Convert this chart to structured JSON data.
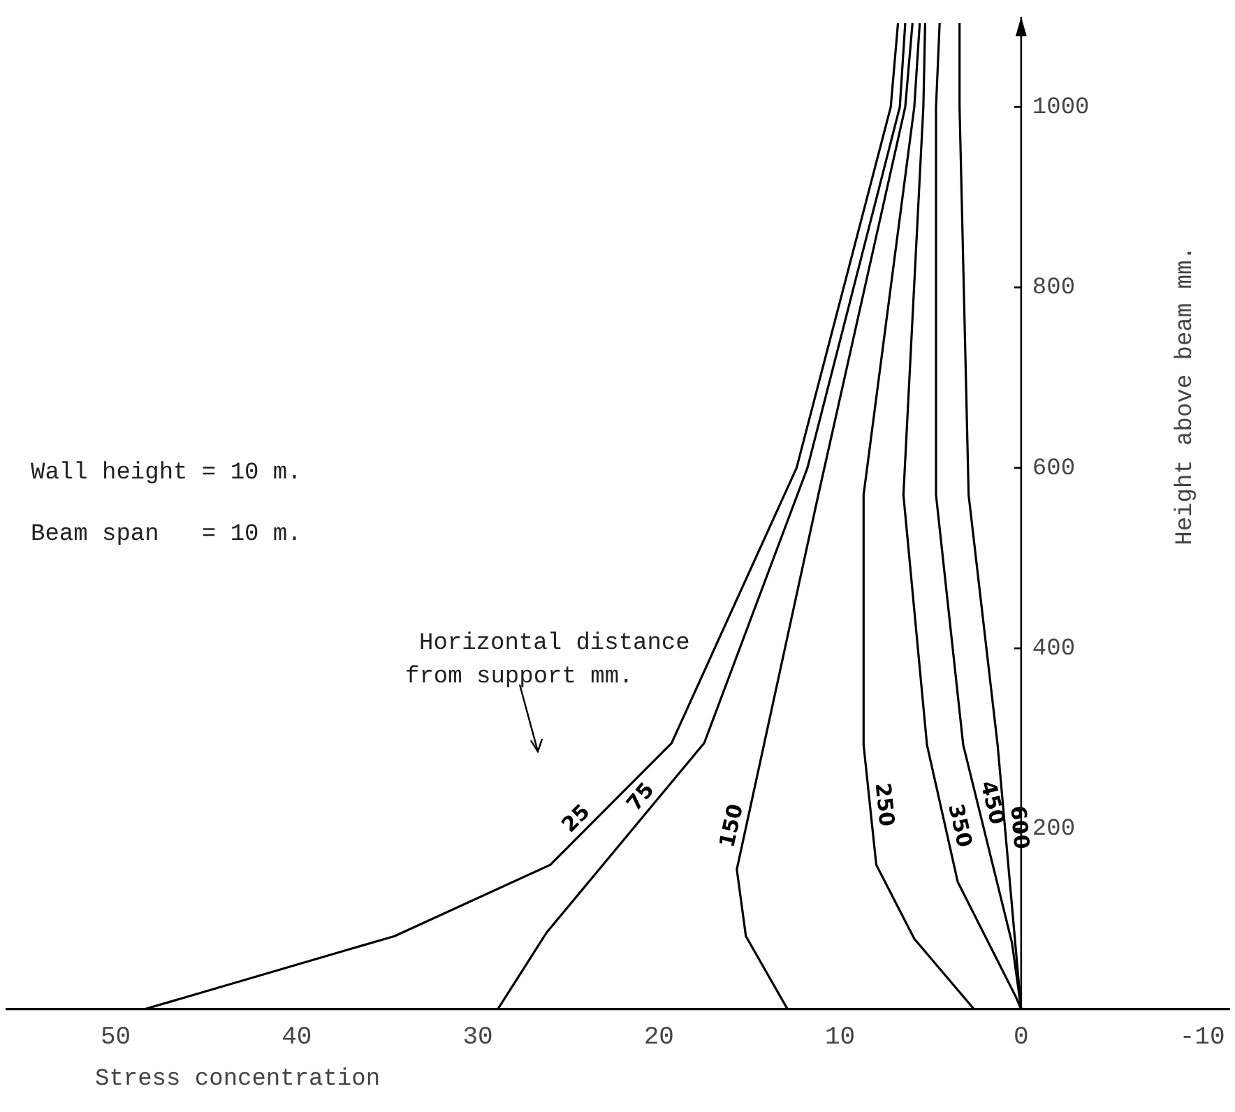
{
  "chart_data": {
    "type": "line",
    "xlabel": "Stress concentration",
    "ylabel": "Height above beam mm.",
    "xlim": [
      56,
      -11.5
    ],
    "ylim": [
      0,
      1100
    ],
    "xticks": [
      50,
      40,
      30,
      20,
      10,
      0,
      -10
    ],
    "yticks": [
      200,
      400,
      600,
      800,
      1000
    ],
    "grid": false,
    "legend": false,
    "marker": "none",
    "line_style": "solid",
    "annotations": [
      "Wall height = 10 m.",
      "Beam span   = 10 m.",
      "Horizontal distance\nfrom support mm."
    ],
    "series": [
      {
        "name": "25",
        "color": "#000000",
        "x": [
          48.4,
          34.6,
          26.0,
          19.3,
          12.4,
          7.2,
          6.8
        ],
        "values": [
          0,
          81,
          160,
          295,
          600,
          1000,
          1093
        ]
      },
      {
        "name": "75",
        "color": "#000000",
        "x": [
          28.9,
          26.2,
          17.5,
          11.8,
          6.7,
          6.4
        ],
        "values": [
          0,
          85,
          295,
          600,
          1000,
          1093
        ]
      },
      {
        "name": "150",
        "color": "#000000",
        "x": [
          12.9,
          15.2,
          15.7,
          11.2,
          6.4,
          6.0
        ],
        "values": [
          0,
          81,
          155,
          570,
          1000,
          1093
        ]
      },
      {
        "name": "250",
        "color": "#000000",
        "x": [
          2.6,
          5.9,
          8.0,
          8.7,
          8.7,
          5.9,
          5.6
        ],
        "values": [
          0,
          78,
          160,
          293,
          570,
          1000,
          1093
        ]
      },
      {
        "name": "350",
        "color": "#000000",
        "x": [
          0,
          0.3,
          3.5,
          5.2,
          6.5,
          5.4,
          5.3
        ],
        "values": [
          0,
          14,
          141,
          293,
          570,
          1000,
          1093
        ]
      },
      {
        "name": "450",
        "color": "#000000",
        "x": [
          0,
          0.5,
          3.2,
          4.7,
          4.7,
          4.5
        ],
        "values": [
          0,
          73,
          293,
          570,
          1000,
          1093
        ]
      },
      {
        "name": "600",
        "color": "#000000",
        "x": [
          0,
          1.3,
          2.9,
          3.4,
          3.4
        ],
        "values": [
          0,
          293,
          570,
          1000,
          1093
        ]
      }
    ]
  }
}
